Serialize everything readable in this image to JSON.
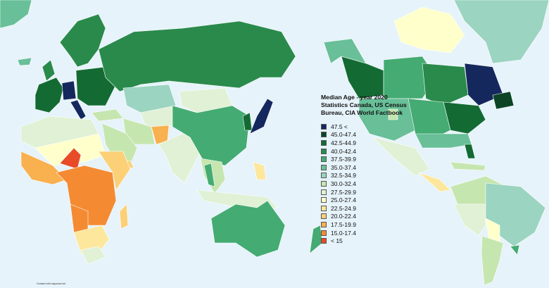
{
  "legend": {
    "title_lines": [
      "Median Age - year 2020",
      "Statistics Canada, US Census",
      "Bureau, CIA World Factbook"
    ],
    "items": [
      {
        "label": "47.5 <",
        "color": "#14285e"
      },
      {
        "label": "45.0-47.4",
        "color": "#0b4526"
      },
      {
        "label": "42.5-44.9",
        "color": "#136b33"
      },
      {
        "label": "40.0-42.4",
        "color": "#2a8a4c"
      },
      {
        "label": "37.5-39.9",
        "color": "#44ab73"
      },
      {
        "label": "35.0-37.4",
        "color": "#68bf98"
      },
      {
        "label": "32.5-34.9",
        "color": "#9bd4c0"
      },
      {
        "label": "30.0-32.4",
        "color": "#c6e6b0"
      },
      {
        "label": "27.5-29.9",
        "color": "#e0f1d6"
      },
      {
        "label": "25.0-27.4",
        "color": "#ffffcc"
      },
      {
        "label": "22.5-24.9",
        "color": "#fde79c"
      },
      {
        "label": "20.0-22.4",
        "color": "#fcd077"
      },
      {
        "label": "17.5-19.9",
        "color": "#f9b04e"
      },
      {
        "label": "15.0-17.4",
        "color": "#f48b33"
      },
      {
        "label": "< 15",
        "color": "#e84b27"
      }
    ]
  },
  "credit": "Created with mapchart.net",
  "background_color": "#e6f3fa"
}
